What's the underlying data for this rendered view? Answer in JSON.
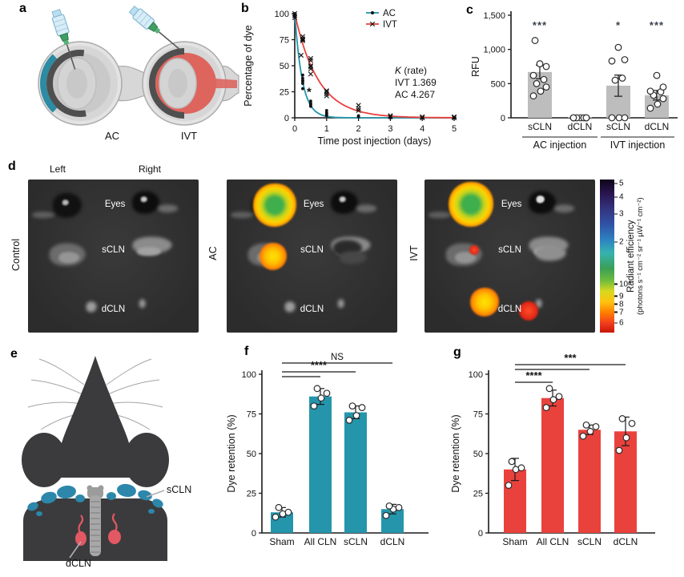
{
  "panels": {
    "a": {
      "label": "a",
      "left_caption": "AC",
      "right_caption": "IVT"
    },
    "b": {
      "label": "b"
    },
    "c": {
      "label": "c"
    },
    "d": {
      "label": "d",
      "col_labels": [
        "Left",
        "Right"
      ],
      "rows": [
        "Control",
        "AC",
        "IVT"
      ],
      "organ_labels": [
        "Eyes",
        "sCLN",
        "dCLN"
      ],
      "colorbar": {
        "ticks": [
          "5",
          "4",
          "3",
          "2",
          "10⁸",
          "9",
          "8",
          "7",
          "6"
        ],
        "label_line1": "Radiant efficiency",
        "label_line2": "(photons s⁻¹ cm⁻² sr⁻¹ µW⁻¹ cm⁻²)"
      }
    },
    "e": {
      "label": "e",
      "scln_label": "sCLN",
      "dcln_label": "dCLN"
    },
    "f": {
      "label": "f"
    },
    "g": {
      "label": "g"
    }
  },
  "colors": {
    "teal": "#2495ab",
    "red": "#e9423d",
    "bar_gray": "#bdbdbd",
    "scln_blue": "#2d87ab",
    "dcln_red": "#e25863"
  },
  "chart_data": [
    {
      "type": "scatter-line",
      "panel": "b",
      "xlabel": "Time post injection (days)",
      "ylabel": "Percentage of dye",
      "xlim": [
        0,
        5
      ],
      "ylim": [
        0,
        100
      ],
      "xticks": [
        0,
        1,
        2,
        3,
        4,
        5
      ],
      "yticks": [
        0,
        25,
        50,
        75,
        100
      ],
      "annotation": {
        "lines": [
          "K (rate)",
          "IVT 1.369",
          "AC 4.267"
        ]
      },
      "star_annotation": {
        "x": 0.45,
        "y": 21,
        "text": "*"
      },
      "series": [
        {
          "name": "AC",
          "color": "#2495ab",
          "marker": "dot",
          "rate": 4.267,
          "points": [
            [
              0,
              97
            ],
            [
              0,
              99
            ],
            [
              0,
              100
            ],
            [
              0.25,
              28
            ],
            [
              0.25,
              33
            ],
            [
              0.25,
              35
            ],
            [
              0.25,
              36
            ],
            [
              0.25,
              38
            ],
            [
              0.25,
              41
            ],
            [
              0.5,
              11
            ],
            [
              0.5,
              12
            ],
            [
              0.5,
              13
            ],
            [
              0.5,
              14
            ],
            [
              0.5,
              16
            ],
            [
              1,
              2
            ],
            [
              1,
              3
            ],
            [
              1,
              4
            ],
            [
              1,
              5
            ],
            [
              1,
              7
            ],
            [
              2,
              1
            ],
            [
              2,
              2
            ],
            [
              3,
              0
            ],
            [
              3,
              1
            ],
            [
              4,
              0
            ],
            [
              5,
              0
            ]
          ]
        },
        {
          "name": "IVT",
          "color": "#e9423d",
          "marker": "x",
          "rate": 1.369,
          "points": [
            [
              0,
              96
            ],
            [
              0,
              98
            ],
            [
              0,
              100
            ],
            [
              0.2,
              60
            ],
            [
              0.25,
              74
            ],
            [
              0.25,
              75
            ],
            [
              0.25,
              76
            ],
            [
              0.25,
              78
            ],
            [
              0.5,
              42
            ],
            [
              0.5,
              47
            ],
            [
              0.5,
              49
            ],
            [
              0.5,
              50
            ],
            [
              0.5,
              55
            ],
            [
              0.5,
              57
            ],
            [
              1,
              21
            ],
            [
              1,
              23
            ],
            [
              1,
              25
            ],
            [
              1,
              26
            ],
            [
              2,
              7
            ],
            [
              2,
              9
            ],
            [
              2,
              12
            ],
            [
              3,
              1
            ],
            [
              3,
              2
            ],
            [
              4,
              0
            ],
            [
              4,
              1
            ],
            [
              5,
              0
            ],
            [
              5,
              1
            ]
          ]
        }
      ]
    },
    {
      "type": "bar",
      "panel": "c",
      "ylabel": "RFU",
      "ylim": [
        0,
        1500
      ],
      "yticks": [
        0,
        500,
        1000,
        1500
      ],
      "ytick_labels": [
        "0",
        "500",
        "1,000",
        "1,500"
      ],
      "bar_color": "#bdbdbd",
      "categories": [
        "sCLN",
        "dCLN",
        "sCLN",
        "dCLN"
      ],
      "values": [
        670,
        2,
        470,
        330
      ],
      "errors": [
        100,
        0,
        155,
        70
      ],
      "sig_labels": [
        "***",
        "",
        "*",
        "***"
      ],
      "points": [
        [
          320,
          390,
          450,
          500,
          560,
          620,
          750,
          790,
          1130
        ],
        [
          0,
          0,
          0,
          0,
          0,
          0,
          0
        ],
        [
          0,
          0,
          0,
          550,
          580,
          830,
          850,
          1030
        ],
        [
          140,
          200,
          280,
          330,
          380,
          390,
          450,
          620
        ]
      ],
      "groups": [
        {
          "label": "AC injection",
          "span": [
            0,
            1
          ]
        },
        {
          "label": "IVT injection",
          "span": [
            2,
            3
          ]
        }
      ]
    },
    {
      "type": "bar",
      "panel": "f",
      "ylabel": "Dye retention (%)",
      "ylim": [
        0,
        100
      ],
      "yticks": [
        0,
        25,
        50,
        75,
        100
      ],
      "bar_color": "#2495ab",
      "categories": [
        "Sham",
        "All CLN",
        "sCLN",
        "dCLN"
      ],
      "values": [
        13,
        86,
        76,
        15
      ],
      "errors": [
        3,
        5,
        4,
        3
      ],
      "points": [
        [
          10,
          12,
          13,
          16
        ],
        [
          80,
          85,
          88,
          91
        ],
        [
          71,
          74,
          79,
          80
        ],
        [
          11,
          15,
          16,
          17
        ]
      ],
      "sig_lines": [
        {
          "from": 0,
          "to": 3,
          "label": "NS"
        },
        {
          "from": 0,
          "to": 2,
          "label": "****"
        },
        {
          "from": 0,
          "to": 1,
          "label": ""
        }
      ]
    },
    {
      "type": "bar",
      "panel": "g",
      "ylabel": "Dye retention (%)",
      "ylim": [
        0,
        100
      ],
      "yticks": [
        0,
        25,
        50,
        75,
        100
      ],
      "bar_color": "#e9423d",
      "categories": [
        "Sham",
        "All CLN",
        "sCLN",
        "dCLN"
      ],
      "values": [
        40,
        85,
        65,
        64
      ],
      "errors": [
        7,
        5,
        3,
        9
      ],
      "points": [
        [
          30,
          40,
          41,
          45
        ],
        [
          79,
          84,
          86,
          91
        ],
        [
          61,
          64,
          67,
          68
        ],
        [
          52,
          60,
          69,
          72
        ]
      ],
      "sig_lines": [
        {
          "from": 0,
          "to": 3,
          "label": "***"
        },
        {
          "from": 0,
          "to": 2,
          "label": ""
        },
        {
          "from": 0,
          "to": 1,
          "label": "****"
        }
      ]
    }
  ]
}
